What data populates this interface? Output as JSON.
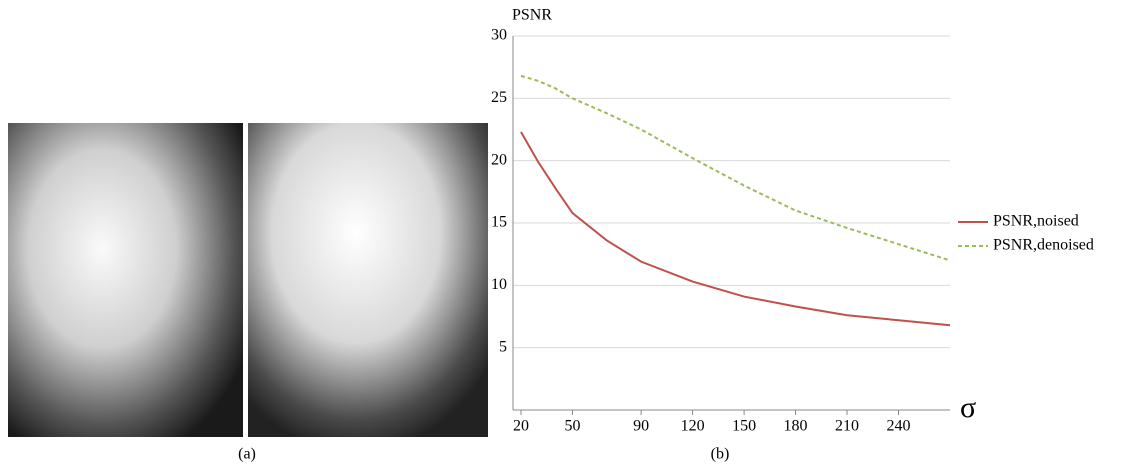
{
  "captions": [
    "(a)",
    "(b)"
  ],
  "chart_data": {
    "type": "line",
    "y_label": "PSNR",
    "x_label": "σ",
    "x": [
      20,
      30,
      40,
      50,
      70,
      90,
      120,
      150,
      180,
      210,
      240,
      270
    ],
    "series": [
      {
        "name": "PSNR,noised",
        "color": "#c0504d",
        "dash": false,
        "values": [
          22.3,
          19.9,
          17.8,
          15.8,
          13.6,
          11.9,
          10.3,
          9.1,
          8.3,
          7.6,
          7.2,
          6.8
        ]
      },
      {
        "name": "PSNR,denoised",
        "color": "#9bbb59",
        "dash": true,
        "values": [
          26.8,
          26.4,
          25.8,
          25.0,
          23.8,
          22.5,
          20.2,
          18.0,
          16.0,
          14.6,
          13.3,
          12.0
        ]
      }
    ],
    "xlim": [
      20,
      270
    ],
    "xticks": [
      20,
      50,
      90,
      120,
      150,
      180,
      210,
      240
    ],
    "ylim": [
      0,
      30
    ],
    "yticks": [
      5,
      10,
      15,
      20,
      25,
      30
    ],
    "grid": true,
    "legend": "right"
  }
}
